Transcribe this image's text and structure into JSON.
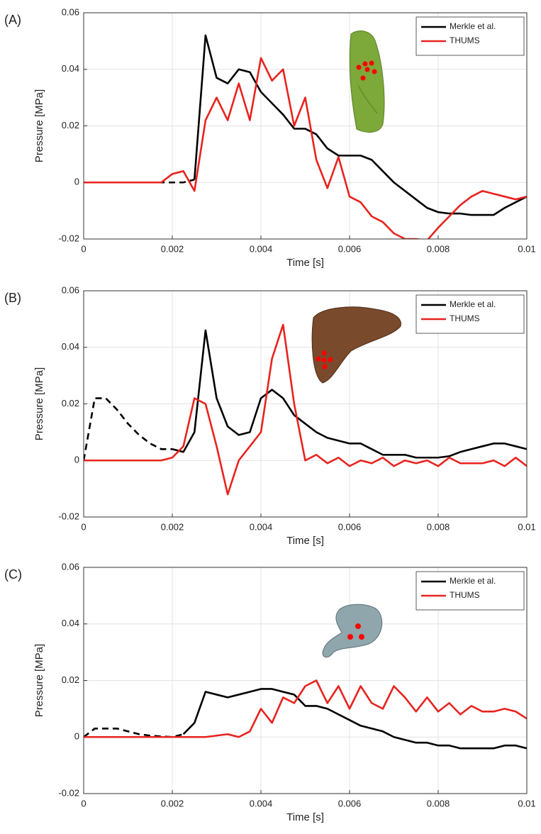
{
  "chart_data": [
    {
      "type": "line",
      "panel_label": "(A)",
      "x_label": "Time [s]",
      "y_label": "Pressure [MPa]",
      "x": [
        0,
        0.00025,
        0.0005,
        0.00075,
        0.001,
        0.00125,
        0.0015,
        0.00175,
        0.002,
        0.00225,
        0.0025,
        0.00275,
        0.003,
        0.00325,
        0.0035,
        0.00375,
        0.004,
        0.00425,
        0.0045,
        0.00475,
        0.005,
        0.00525,
        0.0055,
        0.00575,
        0.006,
        0.00625,
        0.0065,
        0.00675,
        0.007,
        0.00725,
        0.0075,
        0.00775,
        0.008,
        0.00825,
        0.0085,
        0.00875,
        0.009,
        0.00925,
        0.0095,
        0.00975,
        0.01
      ],
      "series": [
        {
          "name": "Merkle et al.",
          "color": "#000000",
          "values": [
            null,
            null,
            null,
            null,
            null,
            null,
            null,
            null,
            null,
            null,
            0.001,
            0.052,
            0.037,
            0.035,
            0.04,
            0.039,
            0.032,
            0.028,
            0.024,
            0.019,
            0.019,
            0.017,
            0.012,
            0.0095,
            0.0095,
            0.0095,
            0.008,
            0.004,
            0,
            -0.003,
            -0.006,
            -0.009,
            -0.0105,
            -0.011,
            -0.011,
            -0.0115,
            -0.0115,
            -0.0115,
            -0.009,
            -0.007,
            -0.005
          ]
        },
        {
          "color": "#000000",
          "dashed": true,
          "values": [
            0,
            0,
            0,
            0,
            0,
            0,
            0,
            0,
            0,
            0,
            0.001,
            null,
            null,
            null,
            null,
            null,
            null,
            null,
            null,
            null,
            null,
            null,
            null,
            null,
            null,
            null,
            null,
            null,
            null,
            null,
            null,
            null,
            null,
            null,
            null,
            null,
            null,
            null,
            null,
            null,
            null
          ]
        },
        {
          "name": "THUMS",
          "color": "#e8231e",
          "values": [
            0,
            0,
            0,
            0,
            0,
            0,
            0,
            0,
            0.003,
            0.004,
            -0.003,
            0.022,
            0.03,
            0.022,
            0.035,
            0.022,
            0.044,
            0.036,
            0.04,
            0.02,
            0.03,
            0.008,
            -0.002,
            0.009,
            -0.005,
            -0.007,
            -0.012,
            -0.014,
            -0.018,
            -0.02,
            -0.02,
            -0.0205,
            -0.016,
            -0.012,
            -0.008,
            -0.005,
            -0.003,
            -0.004,
            -0.005,
            -0.006,
            -0.005
          ]
        }
      ],
      "xlim": [
        0,
        0.01
      ],
      "ylim": [
        -0.02,
        0.06
      ],
      "xticks": [
        0,
        0.002,
        0.004,
        0.006,
        0.008,
        0.01
      ],
      "yticks": [
        -0.02,
        0,
        0.02,
        0.04,
        0.06
      ],
      "grid": true,
      "legend": "northeast"
    },
    {
      "type": "line",
      "panel_label": "(B)",
      "x_label": "Time [s]",
      "y_label": "Pressure [MPa]",
      "x": [
        0,
        0.00025,
        0.0005,
        0.00075,
        0.001,
        0.00125,
        0.0015,
        0.00175,
        0.002,
        0.00225,
        0.0025,
        0.00275,
        0.003,
        0.00325,
        0.0035,
        0.00375,
        0.004,
        0.00425,
        0.0045,
        0.00475,
        0.005,
        0.00525,
        0.0055,
        0.00575,
        0.006,
        0.00625,
        0.0065,
        0.00675,
        0.007,
        0.00725,
        0.0075,
        0.00775,
        0.008,
        0.00825,
        0.0085,
        0.00875,
        0.009,
        0.00925,
        0.0095,
        0.00975,
        0.01
      ],
      "series": [
        {
          "name": "Merkle et al.",
          "color": "#000000",
          "values": [
            null,
            null,
            null,
            null,
            null,
            null,
            null,
            null,
            0.004,
            0.003,
            0.01,
            0.046,
            0.022,
            0.012,
            0.009,
            0.01,
            0.022,
            0.025,
            0.022,
            0.016,
            0.013,
            0.01,
            0.008,
            0.007,
            0.006,
            0.006,
            0.004,
            0.002,
            0.002,
            0.002,
            0.001,
            0.001,
            0.001,
            0.0015,
            0.003,
            0.004,
            0.005,
            0.006,
            0.006,
            0.005,
            0.004
          ]
        },
        {
          "color": "#000000",
          "dashed": true,
          "values": [
            0,
            0.022,
            0.022,
            0.018,
            0.013,
            0.009,
            0.006,
            0.004,
            0.004,
            null,
            null,
            null,
            null,
            null,
            null,
            null,
            null,
            null,
            null,
            null,
            null,
            null,
            null,
            null,
            null,
            null,
            null,
            null,
            null,
            null,
            null,
            null,
            null,
            null,
            null,
            null,
            null,
            null,
            null,
            null,
            null
          ]
        },
        {
          "name": "THUMS",
          "color": "#e8231e",
          "values": [
            0,
            0,
            0,
            0,
            0,
            0,
            0,
            0,
            0.001,
            0.005,
            0.022,
            0.02,
            0.005,
            -0.012,
            0,
            0.005,
            0.01,
            0.036,
            0.048,
            0.02,
            0,
            0.002,
            -0.001,
            0.001,
            -0.002,
            0,
            -0.001,
            0.001,
            -0.002,
            0,
            -0.001,
            0,
            -0.002,
            0.001,
            -0.001,
            -0.001,
            -0.001,
            0,
            -0.002,
            0.001,
            -0.002
          ]
        }
      ],
      "xlim": [
        0,
        0.01
      ],
      "ylim": [
        -0.02,
        0.06
      ],
      "xticks": [
        0,
        0.002,
        0.004,
        0.006,
        0.008,
        0.01
      ],
      "yticks": [
        -0.02,
        0,
        0.02,
        0.04,
        0.06
      ],
      "grid": true,
      "legend": "northeast"
    },
    {
      "type": "line",
      "panel_label": "(C)",
      "x_label": "Time [s]",
      "y_label": "Pressure [MPa]",
      "x": [
        0,
        0.00025,
        0.0005,
        0.00075,
        0.001,
        0.00125,
        0.0015,
        0.00175,
        0.002,
        0.00225,
        0.0025,
        0.00275,
        0.003,
        0.00325,
        0.0035,
        0.00375,
        0.004,
        0.00425,
        0.0045,
        0.00475,
        0.005,
        0.00525,
        0.0055,
        0.00575,
        0.006,
        0.00625,
        0.0065,
        0.00675,
        0.007,
        0.00725,
        0.0075,
        0.00775,
        0.008,
        0.00825,
        0.0085,
        0.00875,
        0.009,
        0.00925,
        0.0095,
        0.00975,
        0.01
      ],
      "series": [
        {
          "name": "Merkle et al.",
          "color": "#000000",
          "values": [
            null,
            null,
            null,
            null,
            null,
            null,
            null,
            null,
            null,
            0.001,
            0.005,
            0.016,
            0.015,
            0.014,
            0.015,
            0.016,
            0.017,
            0.017,
            0.016,
            0.015,
            0.011,
            0.011,
            0.01,
            0.008,
            0.006,
            0.004,
            0.003,
            0.002,
            0,
            -0.001,
            -0.002,
            -0.002,
            -0.003,
            -0.003,
            -0.004,
            -0.004,
            -0.004,
            -0.004,
            -0.003,
            -0.003,
            -0.004
          ]
        },
        {
          "color": "#000000",
          "dashed": true,
          "values": [
            0,
            0.003,
            0.003,
            0.003,
            0.002,
            0.001,
            0.0005,
            0.0002,
            0,
            0.001,
            null,
            null,
            null,
            null,
            null,
            null,
            null,
            null,
            null,
            null,
            null,
            null,
            null,
            null,
            null,
            null,
            null,
            null,
            null,
            null,
            null,
            null,
            null,
            null,
            null,
            null,
            null,
            null,
            null,
            null,
            null
          ]
        },
        {
          "name": "THUMS",
          "color": "#e8231e",
          "values": [
            0,
            0,
            0,
            0,
            0,
            0,
            0,
            0,
            0,
            0,
            0,
            0,
            0.0005,
            0.001,
            0,
            0.002,
            0.01,
            0.005,
            0.014,
            0.012,
            0.018,
            0.02,
            0.012,
            0.018,
            0.01,
            0.018,
            0.012,
            0.01,
            0.018,
            0.014,
            0.009,
            0.014,
            0.009,
            0.012,
            0.008,
            0.011,
            0.009,
            0.009,
            0.01,
            0.009,
            0.0065
          ]
        }
      ],
      "xlim": [
        0,
        0.01
      ],
      "ylim": [
        -0.02,
        0.06
      ],
      "xticks": [
        0,
        0.002,
        0.004,
        0.006,
        0.008,
        0.01
      ],
      "yticks": [
        -0.02,
        0,
        0.02,
        0.04,
        0.06
      ],
      "grid": true,
      "legend": "northeast"
    }
  ]
}
